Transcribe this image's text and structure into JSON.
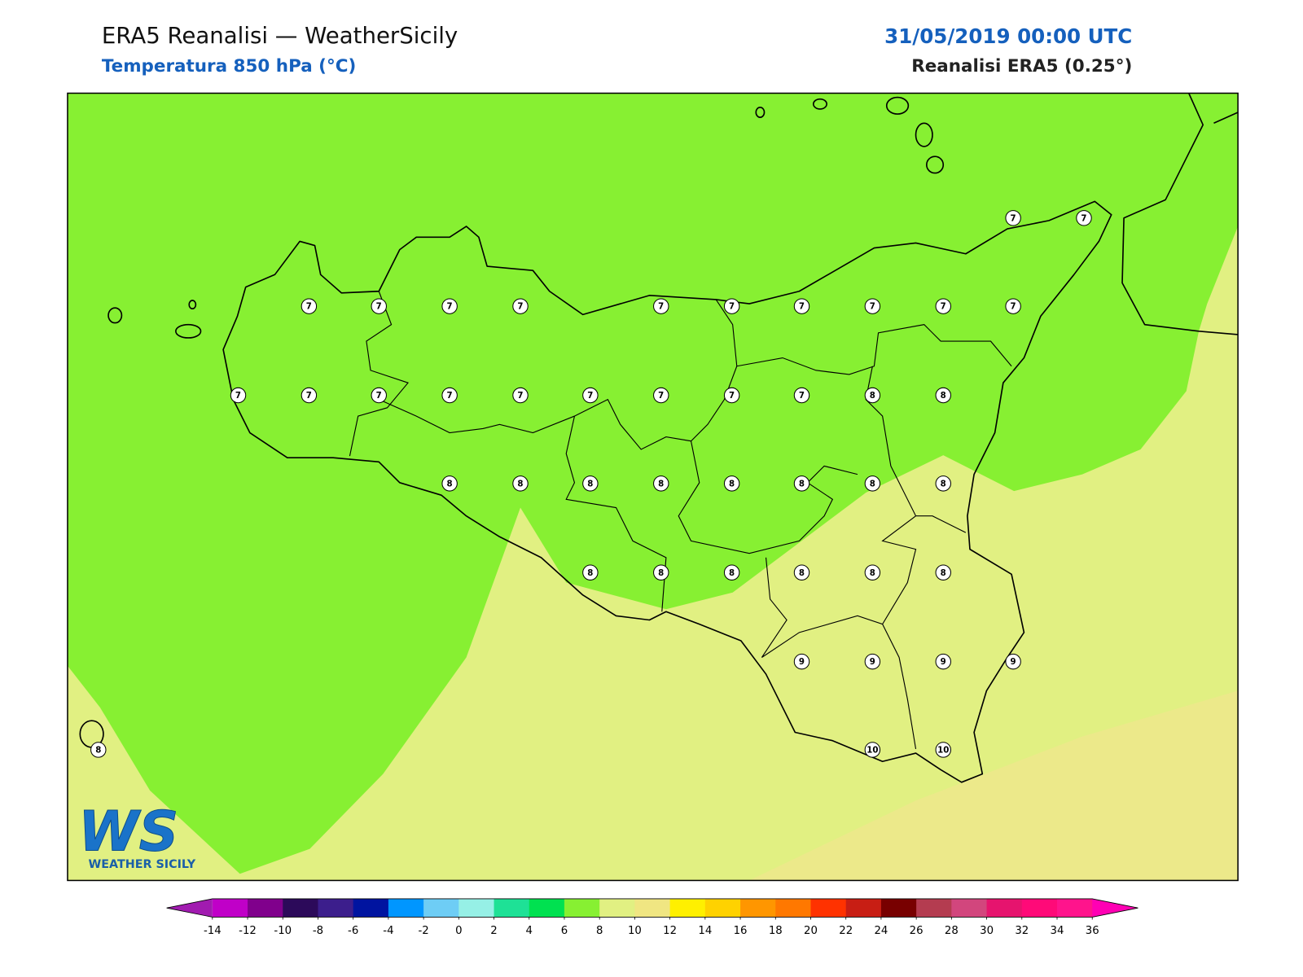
{
  "header": {
    "title": "ERA5 Reanalisi — WeatherSicily",
    "subtitle": "Temperatura 850 hPa (°C)",
    "date": "31/05/2019 00:00 UTC",
    "source": "Reanalisi ERA5 (0.25°)"
  },
  "stations": [
    7,
    7,
    7,
    7,
    7,
    7,
    7,
    7,
    7,
    7,
    7,
    7,
    7,
    7,
    7,
    7,
    7,
    7,
    7,
    7,
    7,
    8,
    8,
    8,
    8,
    8,
    8,
    8,
    8,
    8,
    8,
    8,
    8,
    8,
    8,
    8,
    8,
    9,
    9,
    9,
    9,
    8,
    10,
    10
  ],
  "logo": {
    "mark": "WS",
    "name": "WEATHER SICILY"
  },
  "colorbar": {
    "ticks": [
      -14,
      -12,
      -10,
      -8,
      -6,
      -4,
      -2,
      0,
      2,
      4,
      6,
      8,
      10,
      12,
      14,
      16,
      18,
      20,
      22,
      24,
      26,
      28,
      30,
      32,
      34,
      36
    ],
    "colors": [
      "#c000c8",
      "#80008c",
      "#2c0a5a",
      "#3c1e8c",
      "#0014a0",
      "#0096ff",
      "#6ecdf5",
      "#96f0e6",
      "#1ee196",
      "#00e150",
      "#87f032",
      "#e1f082",
      "#f0e682",
      "#fff000",
      "#ffd200",
      "#ff9600",
      "#ff7800",
      "#ff3200",
      "#c81e14",
      "#780000",
      "#b43c50",
      "#d2467d",
      "#e6146e",
      "#ff0a78",
      "#ff148c"
    ],
    "under": "#a11bb0",
    "over": "#ff00b4"
  }
}
